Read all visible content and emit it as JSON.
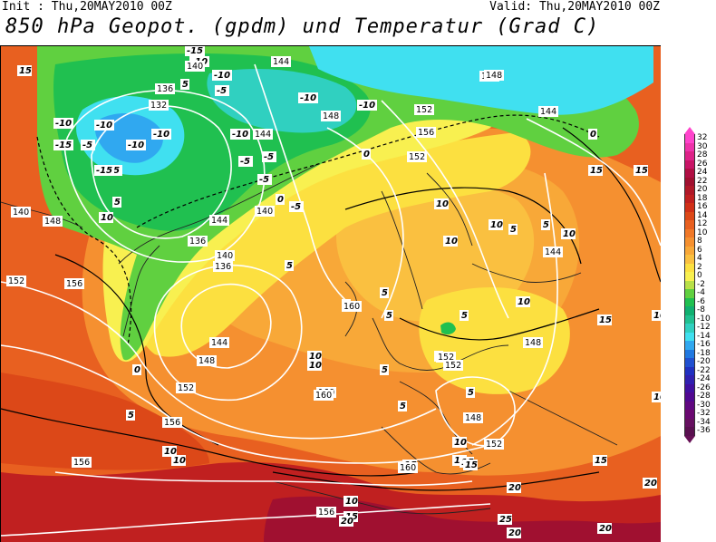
{
  "header": {
    "init": "Init : Thu,20MAY2010 00Z",
    "valid": "Valid: Thu,20MAY2010 00Z",
    "title": "850 hPa Geopot. (gpdm) und Temperatur (Grad C)"
  },
  "legend": {
    "labels": [
      "32",
      "30",
      "28",
      "26",
      "24",
      "22",
      "20",
      "18",
      "16",
      "14",
      "12",
      "10",
      "8",
      "6",
      "4",
      "2",
      "0",
      "-2",
      "-4",
      "-6",
      "-8",
      "-10",
      "-12",
      "-14",
      "-16",
      "-18",
      "-20",
      "-22",
      "-24",
      "-26",
      "-28",
      "-30",
      "-32",
      "-34",
      "-36"
    ],
    "colors": [
      "#ff44cc",
      "#ee33aa",
      "#dd2288",
      "#c81466",
      "#b00f44",
      "#a01030",
      "#b01828",
      "#c02020",
      "#d03018",
      "#dc4818",
      "#e86020",
      "#f07828",
      "#f59030",
      "#f8a838",
      "#fac040",
      "#fce040",
      "#f8f050",
      "#b8e048",
      "#60d040",
      "#20c050",
      "#10b070",
      "#20c090",
      "#30d0c0",
      "#40e0f0",
      "#30a8f0",
      "#2078e0",
      "#2050d0",
      "#2030c0",
      "#3020b0",
      "#4010a0",
      "#500890",
      "#600880",
      "#6a0870",
      "#661060",
      "#5a1050"
    ],
    "top_arrow_color": "#ff44cc",
    "bottom_arrow_color": "#661155"
  },
  "map": {
    "temperature_labels": [
      "15",
      "5",
      "-10",
      "-15",
      "-10",
      "-5",
      "-10",
      "-5",
      "-15",
      "-10",
      "-10",
      "-15",
      "-10",
      "-5",
      "-5",
      "-10",
      "-5",
      "-5",
      "-10",
      "-10",
      "0",
      "0",
      "5",
      "10",
      "10",
      "15",
      "15",
      "5",
      "5",
      "10",
      "-5",
      "0",
      "5",
      "5",
      "5",
      "5",
      "0",
      "5",
      "10",
      "10",
      "15",
      "10",
      "10",
      "5",
      "5",
      "10",
      "10",
      "15",
      "15",
      "20",
      "20",
      "20",
      "25",
      "20",
      "15",
      "20",
      "15",
      "10",
      "10",
      "10",
      "5",
      "5",
      "5",
      "10",
      "15",
      "15",
      "10"
    ],
    "geopotential_labels": [
      "140",
      "144",
      "148",
      "136",
      "132",
      "140",
      "144",
      "148",
      "152",
      "156",
      "136",
      "140",
      "144",
      "148",
      "152",
      "156",
      "160",
      "140",
      "136",
      "144",
      "148",
      "152",
      "156",
      "160",
      "160",
      "152",
      "156",
      "160",
      "152",
      "156",
      "144",
      "148",
      "152",
      "148",
      "144",
      "148",
      "152"
    ]
  }
}
